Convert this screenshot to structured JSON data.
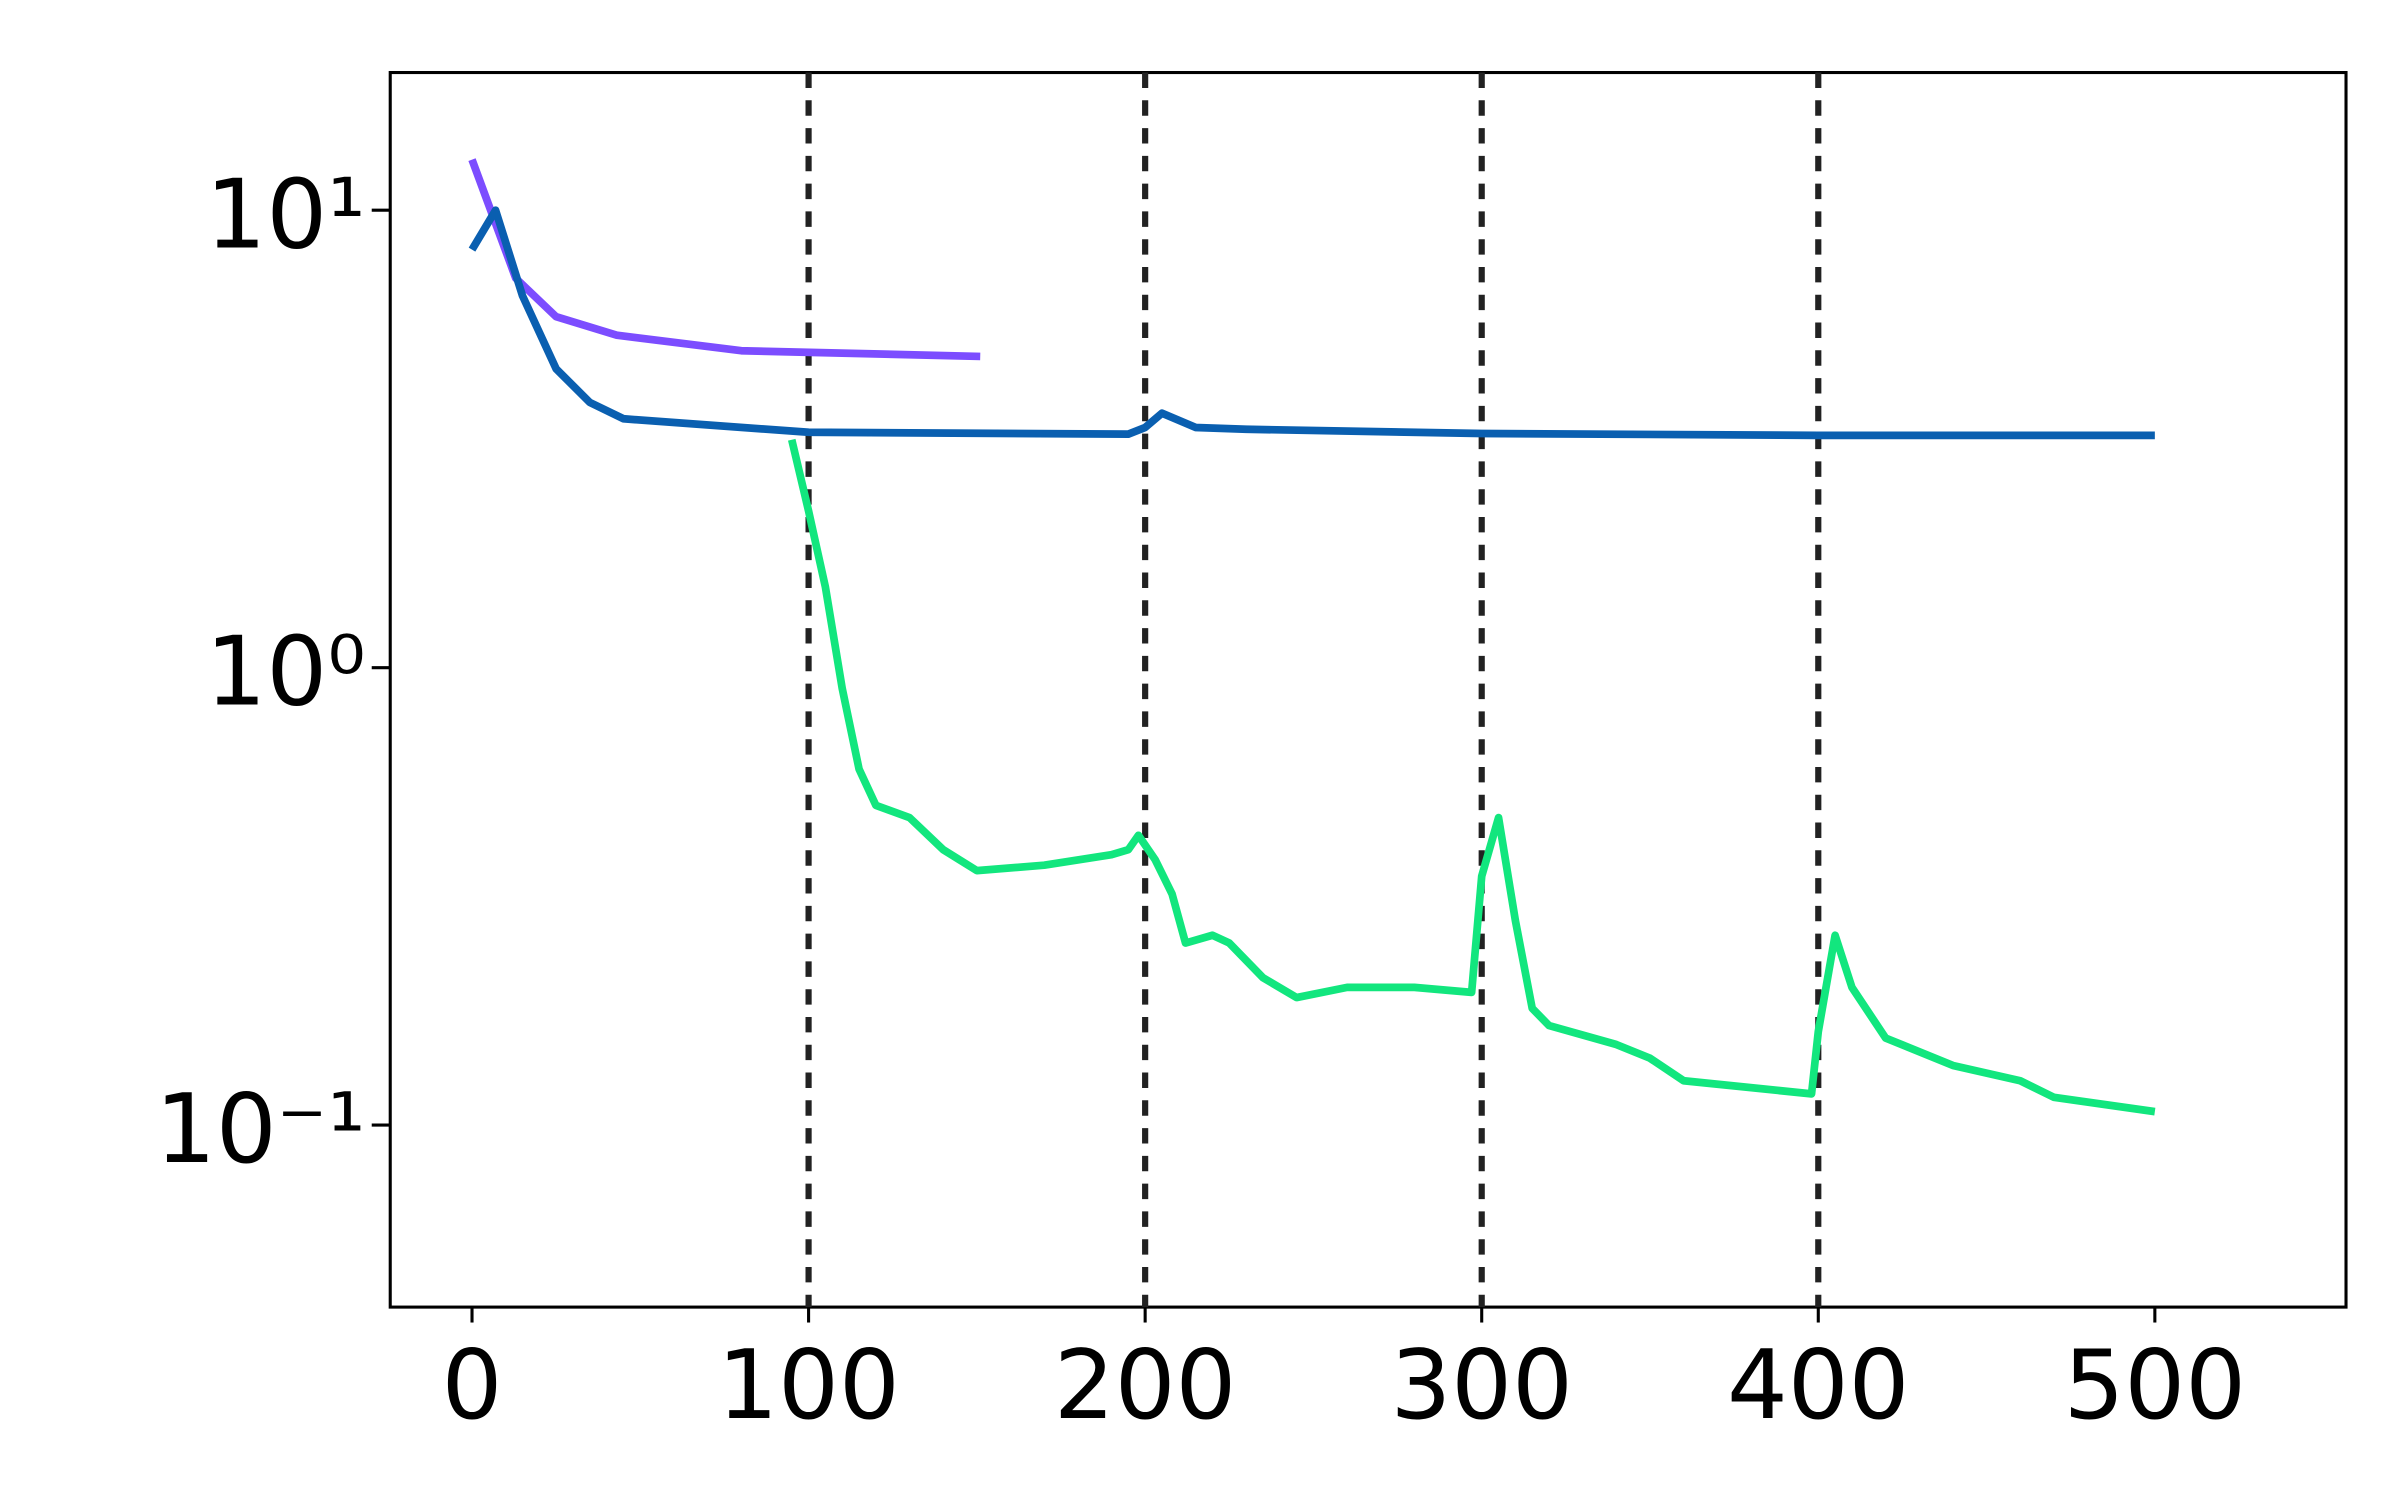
{
  "chart_data": {
    "type": "line",
    "log_y": true,
    "xlim": [
      -24.3,
      556.8
    ],
    "ylim": [
      0.04,
      20
    ],
    "xticks": [
      0,
      100,
      200,
      300,
      400,
      500
    ],
    "yticks": [
      {
        "value": 0.1,
        "label": "10⁻¹"
      },
      {
        "value": 1,
        "label": "10⁰"
      },
      {
        "value": 10,
        "label": "10¹"
      }
    ],
    "vlines": [
      100,
      200,
      300,
      400
    ],
    "vline_color": "#222222",
    "series": [
      {
        "color": "#7c4dff",
        "x": [
          0,
          13,
          25,
          43,
          80,
          151
        ],
        "values": [
          12.9,
          7.1,
          5.85,
          5.33,
          4.93,
          4.79
        ]
      },
      {
        "color": "#0a5fb0",
        "x": [
          0,
          7,
          15,
          25,
          35,
          45,
          100,
          195,
          200,
          205,
          215,
          230,
          300,
          400,
          500
        ],
        "values": [
          8.2,
          10,
          6.5,
          4.5,
          3.8,
          3.5,
          3.27,
          3.24,
          3.35,
          3.6,
          3.35,
          3.32,
          3.25,
          3.22,
          3.22
        ]
      },
      {
        "color": "#12e67e",
        "x": [
          95,
          100,
          105,
          110,
          115,
          120,
          130,
          140,
          150,
          170,
          190,
          195,
          198,
          203,
          208,
          212,
          220,
          225,
          235,
          245,
          260,
          280,
          297,
          300,
          305,
          310,
          315,
          320,
          340,
          350,
          360,
          398,
          400,
          405,
          410,
          420,
          440,
          460,
          470,
          500
        ],
        "values": [
          3.15,
          2.2,
          1.5,
          0.9,
          0.6,
          0.5,
          0.47,
          0.4,
          0.36,
          0.37,
          0.39,
          0.4,
          0.43,
          0.38,
          0.32,
          0.25,
          0.26,
          0.25,
          0.21,
          0.19,
          0.2,
          0.2,
          0.195,
          0.35,
          0.47,
          0.28,
          0.18,
          0.165,
          0.15,
          0.14,
          0.125,
          0.117,
          0.16,
          0.26,
          0.2,
          0.155,
          0.135,
          0.125,
          0.115,
          0.107
        ]
      }
    ]
  }
}
